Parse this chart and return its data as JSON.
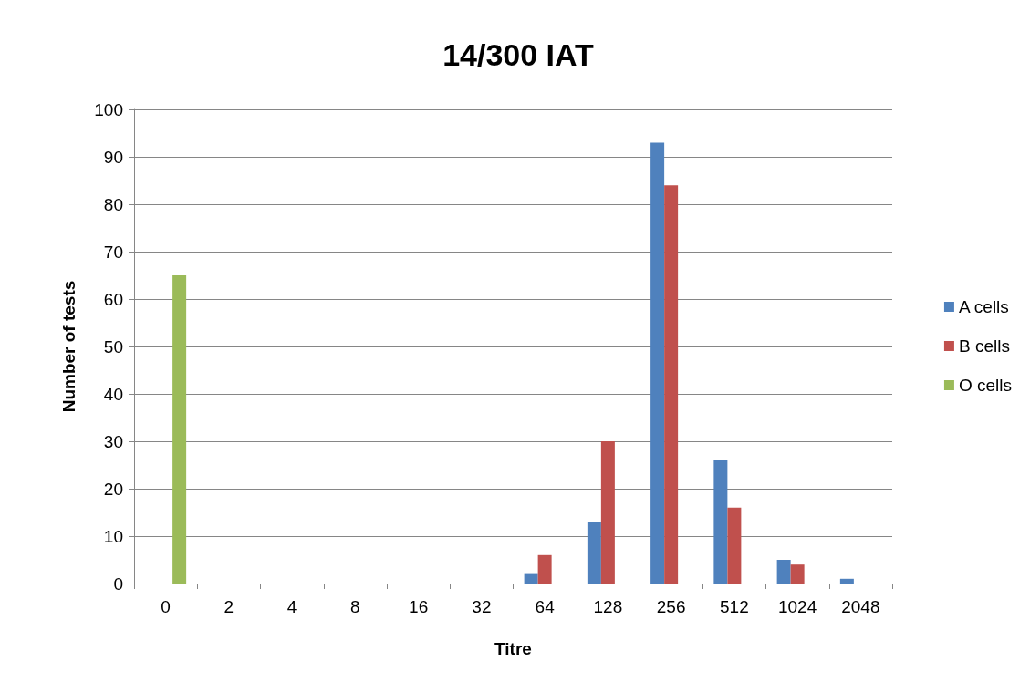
{
  "chart_data": {
    "type": "bar",
    "title": "14/300 IAT",
    "xlabel": "Titre",
    "ylabel": "Number of tests",
    "categories": [
      "0",
      "2",
      "4",
      "8",
      "16",
      "32",
      "64",
      "128",
      "256",
      "512",
      "1024",
      "2048"
    ],
    "series": [
      {
        "name": "A cells",
        "color": "#4f81bd",
        "values": [
          0,
          0,
          0,
          0,
          0,
          0,
          2,
          13,
          93,
          26,
          5,
          1
        ]
      },
      {
        "name": "B cells",
        "color": "#c0504d",
        "values": [
          0,
          0,
          0,
          0,
          0,
          0,
          6,
          30,
          84,
          16,
          4,
          0
        ]
      },
      {
        "name": "O cells",
        "color": "#9bbb59",
        "values": [
          65,
          0,
          0,
          0,
          0,
          0,
          0,
          0,
          0,
          0,
          0,
          0
        ]
      }
    ],
    "ylim": [
      0,
      100
    ],
    "yticks": [
      0,
      10,
      20,
      30,
      40,
      50,
      60,
      70,
      80,
      90,
      100
    ],
    "grid": "y",
    "legend": "right"
  }
}
